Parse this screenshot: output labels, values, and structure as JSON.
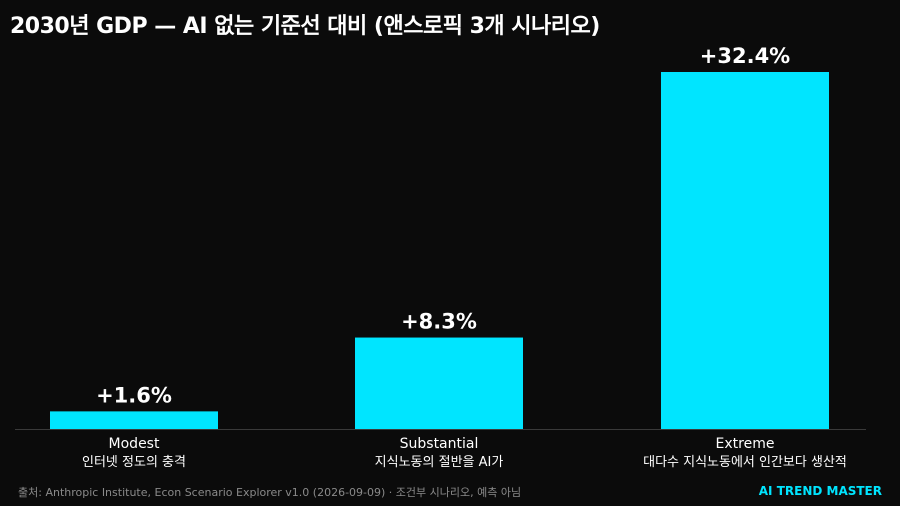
{
  "title": "2030년 GDP — AI 없는 기준선 대비 (앤스로픽 3개 시나리오)",
  "footer": {
    "source": "출처: Anthropic Institute, Econ Scenario Explorer v1.0 (2026-09-09) · 조건부 시나리오, 예측 아님",
    "brand": "AI TREND MASTER"
  },
  "colors": {
    "background": "#0b0b0b",
    "bar": "#00e5ff",
    "brand": "#00e5ff",
    "baseline": "#3a3a3a"
  },
  "chart_data": {
    "type": "bar",
    "title": "2030년 GDP — AI 없는 기준선 대비 (앤스로픽 3개 시나리오)",
    "unit": "%",
    "categories": [
      "Modest",
      "Substantial",
      "Extreme"
    ],
    "subtitles": [
      "인터넷 정도의 충격",
      "지식노동의 절반을 AI가",
      "대다수 지식노동에서 인간보다 생산적"
    ],
    "values": [
      1.6,
      8.3,
      32.4
    ],
    "value_labels": [
      "+1.6%",
      "+8.3%",
      "+32.4%"
    ],
    "ylim": [
      0,
      35
    ],
    "grid": false,
    "legend": "none"
  }
}
